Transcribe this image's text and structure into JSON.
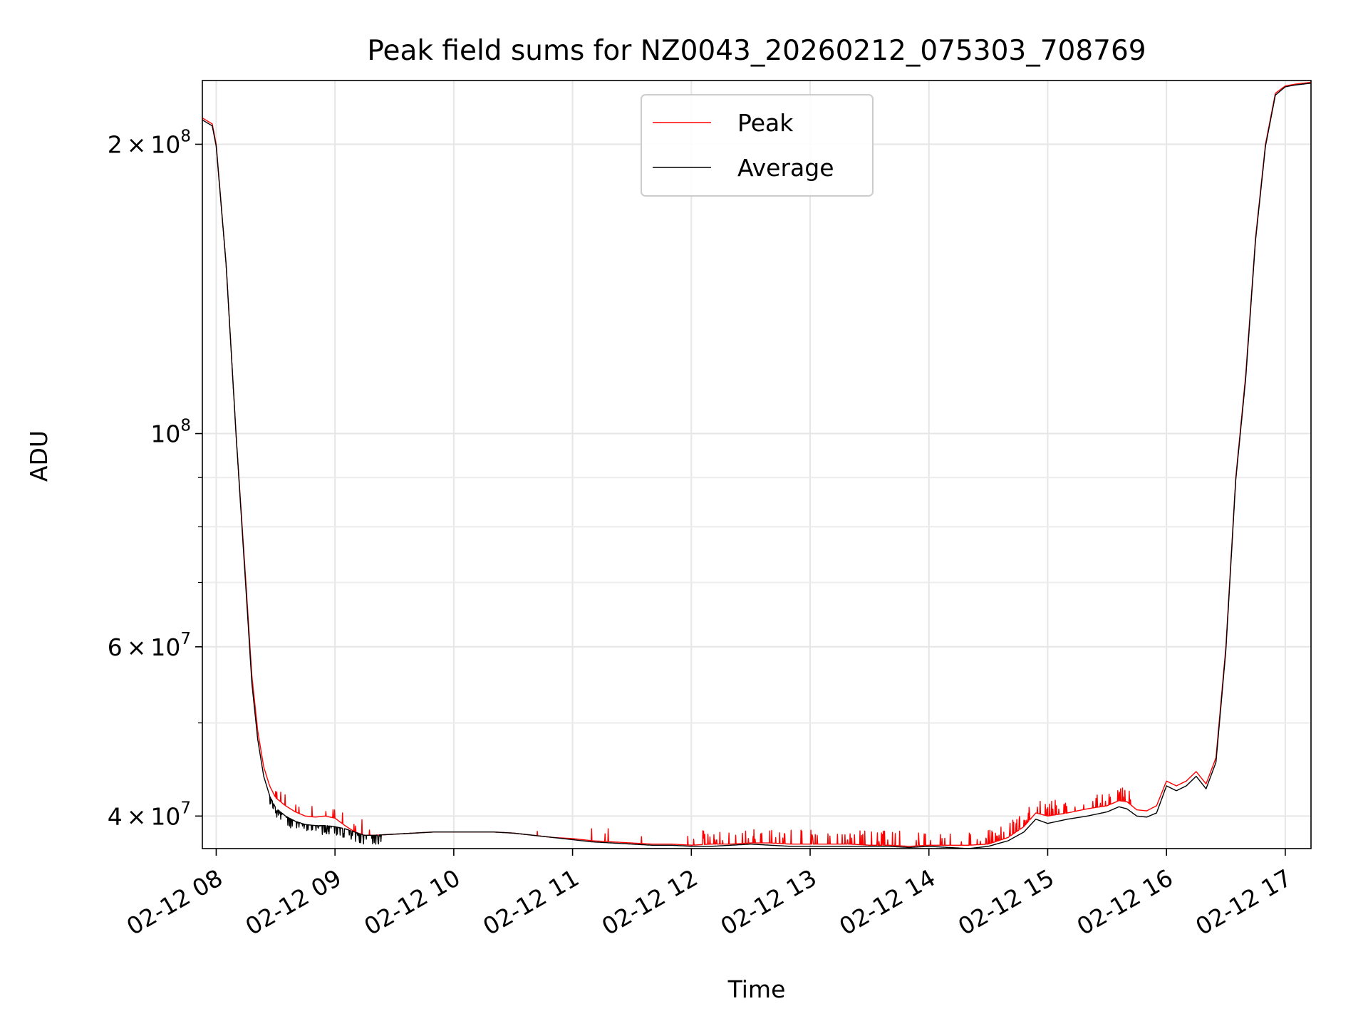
{
  "chart_data": {
    "type": "line",
    "title": "Peak field sums for NZ0043_20260212_075303_708769",
    "xlabel": "Time",
    "ylabel": "ADU",
    "y_scale": "log",
    "grid": true,
    "legend_position": "top-center",
    "xlim": [
      "2026-02-12 07:53",
      "2026-02-12 17:13"
    ],
    "ylim": [
      37000000,
      233000000
    ],
    "x_ticks": [
      {
        "value": "2026-02-12 08:00",
        "label": "02-12 08"
      },
      {
        "value": "2026-02-12 09:00",
        "label": "02-12 09"
      },
      {
        "value": "2026-02-12 10:00",
        "label": "02-12 10"
      },
      {
        "value": "2026-02-12 11:00",
        "label": "02-12 11"
      },
      {
        "value": "2026-02-12 12:00",
        "label": "02-12 12"
      },
      {
        "value": "2026-02-12 13:00",
        "label": "02-12 13"
      },
      {
        "value": "2026-02-12 14:00",
        "label": "02-12 14"
      },
      {
        "value": "2026-02-12 15:00",
        "label": "02-12 15"
      },
      {
        "value": "2026-02-12 16:00",
        "label": "02-12 16"
      },
      {
        "value": "2026-02-12 17:00",
        "label": "02-12 17"
      }
    ],
    "y_major_ticks": [
      {
        "value": 40000000,
        "mantissa": "4",
        "exponent": "7"
      },
      {
        "value": 60000000,
        "mantissa": "6",
        "exponent": "7"
      },
      {
        "value": 100000000,
        "mantissa": "",
        "exponent": "8"
      },
      {
        "value": 200000000,
        "mantissa": "2",
        "exponent": "8"
      }
    ],
    "y_base": "10",
    "y_times": "×",
    "y_minor_ticks": [
      50000000,
      70000000,
      80000000,
      90000000
    ],
    "series": [
      {
        "name": "Peak",
        "color": "#ff0000",
        "noise": "spiky",
        "x": [
          "2026-02-12 07:53",
          "2026-02-12 07:58",
          "2026-02-12 08:00",
          "2026-02-12 08:05",
          "2026-02-12 08:10",
          "2026-02-12 08:15",
          "2026-02-12 08:18",
          "2026-02-12 08:21",
          "2026-02-12 08:24",
          "2026-02-12 08:27",
          "2026-02-12 08:30",
          "2026-02-12 08:35",
          "2026-02-12 08:40",
          "2026-02-12 08:45",
          "2026-02-12 08:50",
          "2026-02-12 08:55",
          "2026-02-12 09:00",
          "2026-02-12 09:05",
          "2026-02-12 09:10",
          "2026-02-12 09:15",
          "2026-02-12 09:20",
          "2026-02-12 09:30",
          "2026-02-12 09:40",
          "2026-02-12 09:50",
          "2026-02-12 10:00",
          "2026-02-12 10:10",
          "2026-02-12 10:20",
          "2026-02-12 10:30",
          "2026-02-12 10:40",
          "2026-02-12 10:50",
          "2026-02-12 11:00",
          "2026-02-12 11:10",
          "2026-02-12 11:20",
          "2026-02-12 11:30",
          "2026-02-12 11:40",
          "2026-02-12 11:50",
          "2026-02-12 12:00",
          "2026-02-12 12:10",
          "2026-02-12 12:20",
          "2026-02-12 12:30",
          "2026-02-12 12:40",
          "2026-02-12 12:50",
          "2026-02-12 13:00",
          "2026-02-12 13:10",
          "2026-02-12 13:20",
          "2026-02-12 13:30",
          "2026-02-12 13:40",
          "2026-02-12 13:50",
          "2026-02-12 14:00",
          "2026-02-12 14:10",
          "2026-02-12 14:20",
          "2026-02-12 14:30",
          "2026-02-12 14:40",
          "2026-02-12 14:48",
          "2026-02-12 14:54",
          "2026-02-12 15:00",
          "2026-02-12 15:10",
          "2026-02-12 15:20",
          "2026-02-12 15:30",
          "2026-02-12 15:36",
          "2026-02-12 15:40",
          "2026-02-12 15:45",
          "2026-02-12 15:50",
          "2026-02-12 15:55",
          "2026-02-12 16:00",
          "2026-02-12 16:05",
          "2026-02-12 16:10",
          "2026-02-12 16:15",
          "2026-02-12 16:20",
          "2026-02-12 16:25",
          "2026-02-12 16:30",
          "2026-02-12 16:35",
          "2026-02-12 16:40",
          "2026-02-12 16:45",
          "2026-02-12 16:50",
          "2026-02-12 16:55",
          "2026-02-12 17:00",
          "2026-02-12 17:05",
          "2026-02-12 17:13"
        ],
        "y": [
          213000000,
          210000000,
          200000000,
          150000000,
          100000000,
          70000000,
          56000000,
          49000000,
          45000000,
          43000000,
          41800000,
          41000000,
          40400000,
          40000000,
          39900000,
          40000000,
          39800000,
          39100000,
          38500000,
          38200000,
          38200000,
          38300000,
          38400000,
          38500000,
          38500000,
          38500000,
          38500000,
          38400000,
          38200000,
          38000000,
          37900000,
          37700000,
          37600000,
          37500000,
          37400000,
          37400000,
          37300000,
          37400000,
          37400000,
          37500000,
          37500000,
          37400000,
          37400000,
          37400000,
          37400000,
          37300000,
          37300000,
          37200000,
          37300000,
          37300000,
          37300000,
          37400000,
          38000000,
          39000000,
          40300000,
          40000000,
          40300000,
          40700000,
          41000000,
          41500000,
          41400000,
          40600000,
          40500000,
          41000000,
          43500000,
          43000000,
          43500000,
          44500000,
          43200000,
          46000000,
          60000000,
          90000000,
          115000000,
          160000000,
          200000000,
          226000000,
          230000000,
          231000000,
          232000000
        ]
      },
      {
        "name": "Average",
        "color": "#000000",
        "noise": "dips",
        "x": [
          "2026-02-12 07:53",
          "2026-02-12 07:58",
          "2026-02-12 08:00",
          "2026-02-12 08:05",
          "2026-02-12 08:10",
          "2026-02-12 08:15",
          "2026-02-12 08:18",
          "2026-02-12 08:21",
          "2026-02-12 08:24",
          "2026-02-12 08:27",
          "2026-02-12 08:30",
          "2026-02-12 08:35",
          "2026-02-12 08:40",
          "2026-02-12 08:45",
          "2026-02-12 08:50",
          "2026-02-12 08:55",
          "2026-02-12 09:00",
          "2026-02-12 09:05",
          "2026-02-12 09:10",
          "2026-02-12 09:15",
          "2026-02-12 09:20",
          "2026-02-12 09:30",
          "2026-02-12 09:40",
          "2026-02-12 09:50",
          "2026-02-12 10:00",
          "2026-02-12 10:10",
          "2026-02-12 10:20",
          "2026-02-12 10:30",
          "2026-02-12 10:40",
          "2026-02-12 10:50",
          "2026-02-12 11:00",
          "2026-02-12 11:10",
          "2026-02-12 11:20",
          "2026-02-12 11:30",
          "2026-02-12 11:40",
          "2026-02-12 11:50",
          "2026-02-12 12:00",
          "2026-02-12 12:10",
          "2026-02-12 12:20",
          "2026-02-12 12:30",
          "2026-02-12 12:40",
          "2026-02-12 12:50",
          "2026-02-12 13:00",
          "2026-02-12 13:10",
          "2026-02-12 13:20",
          "2026-02-12 13:30",
          "2026-02-12 13:40",
          "2026-02-12 13:50",
          "2026-02-12 14:00",
          "2026-02-12 14:10",
          "2026-02-12 14:20",
          "2026-02-12 14:30",
          "2026-02-12 14:40",
          "2026-02-12 14:48",
          "2026-02-12 14:54",
          "2026-02-12 15:00",
          "2026-02-12 15:10",
          "2026-02-12 15:20",
          "2026-02-12 15:30",
          "2026-02-12 15:36",
          "2026-02-12 15:40",
          "2026-02-12 15:45",
          "2026-02-12 15:50",
          "2026-02-12 15:55",
          "2026-02-12 16:00",
          "2026-02-12 16:05",
          "2026-02-12 16:10",
          "2026-02-12 16:15",
          "2026-02-12 16:20",
          "2026-02-12 16:25",
          "2026-02-12 16:30",
          "2026-02-12 16:35",
          "2026-02-12 16:40",
          "2026-02-12 16:45",
          "2026-02-12 16:50",
          "2026-02-12 16:55",
          "2026-02-12 17:00",
          "2026-02-12 17:05",
          "2026-02-12 17:13"
        ],
        "y": [
          212000000,
          209000000,
          199000000,
          150000000,
          100000000,
          69000000,
          55000000,
          48000000,
          44000000,
          42000000,
          40800000,
          40000000,
          39500000,
          39200000,
          39100000,
          39100000,
          39000000,
          38800000,
          38500000,
          38200000,
          38200000,
          38300000,
          38400000,
          38500000,
          38500000,
          38500000,
          38500000,
          38400000,
          38200000,
          38000000,
          37800000,
          37600000,
          37500000,
          37400000,
          37300000,
          37300000,
          37200000,
          37200000,
          37300000,
          37400000,
          37300000,
          37200000,
          37200000,
          37200000,
          37200000,
          37200000,
          37200000,
          37100000,
          37200000,
          37100000,
          37000000,
          37200000,
          37700000,
          38500000,
          39700000,
          39300000,
          39700000,
          40000000,
          40400000,
          40900000,
          40700000,
          40000000,
          39900000,
          40300000,
          43000000,
          42500000,
          43000000,
          44000000,
          42700000,
          45500000,
          59500000,
          89500000,
          114000000,
          159000000,
          199000000,
          225000000,
          229500000,
          230500000,
          231500000
        ]
      }
    ]
  }
}
